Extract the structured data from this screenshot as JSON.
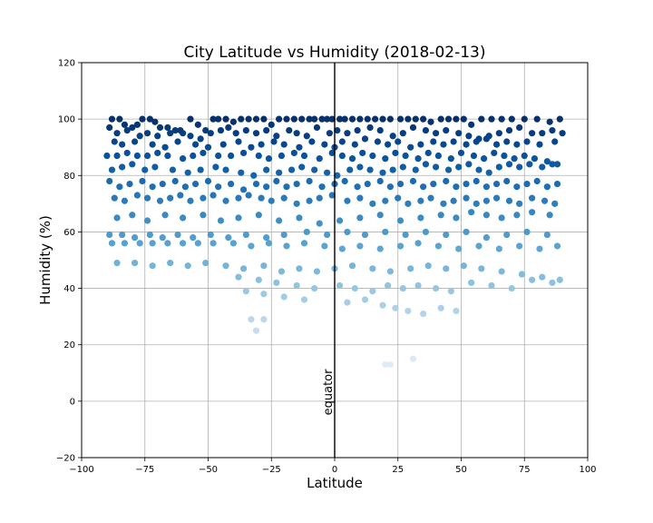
{
  "chart_data": {
    "type": "scatter",
    "title": "City Latitude vs Humidity (2018-02-13)",
    "xlabel": "Latitude",
    "ylabel": "Humidity (%)",
    "xlim": [
      -100,
      100
    ],
    "ylim": [
      -20,
      120
    ],
    "xticks": [
      -100,
      -75,
      -50,
      -25,
      0,
      25,
      50,
      75,
      100
    ],
    "yticks": [
      -20,
      0,
      20,
      40,
      60,
      80,
      100,
      120
    ],
    "grid": true,
    "colormap": "Blues",
    "reference_line": {
      "x": 0,
      "label": "equator",
      "color": "#000000"
    },
    "points": [
      [
        -88,
        100
      ],
      [
        -85,
        100
      ],
      [
        -83,
        98
      ],
      [
        -80,
        97
      ],
      [
        -78,
        98
      ],
      [
        -76,
        100
      ],
      [
        -73,
        100
      ],
      [
        -71,
        99
      ],
      [
        -69,
        97
      ],
      [
        -66,
        97
      ],
      [
        -63,
        96
      ],
      [
        -60,
        95
      ],
      [
        -57,
        100
      ],
      [
        -54,
        98
      ],
      [
        -51,
        96
      ],
      [
        -48,
        100
      ],
      [
        -46,
        100
      ],
      [
        -43,
        100
      ],
      [
        -40,
        99
      ],
      [
        -37,
        100
      ],
      [
        -34,
        100
      ],
      [
        -31,
        100
      ],
      [
        -28,
        100
      ],
      [
        -25,
        98
      ],
      [
        -22,
        100
      ],
      [
        -19,
        100
      ],
      [
        -16,
        100
      ],
      [
        -13,
        100
      ],
      [
        -10,
        100
      ],
      [
        -8,
        100
      ],
      [
        -5,
        100
      ],
      [
        -3,
        100
      ],
      [
        -1,
        100
      ],
      [
        2,
        100
      ],
      [
        4,
        100
      ],
      [
        7,
        100
      ],
      [
        10,
        100
      ],
      [
        13,
        100
      ],
      [
        16,
        100
      ],
      [
        19,
        100
      ],
      [
        22,
        100
      ],
      [
        26,
        100
      ],
      [
        29,
        100
      ],
      [
        32,
        100
      ],
      [
        35,
        100
      ],
      [
        38,
        99
      ],
      [
        42,
        100
      ],
      [
        45,
        100
      ],
      [
        48,
        100
      ],
      [
        51,
        100
      ],
      [
        54,
        98
      ],
      [
        58,
        100
      ],
      [
        62,
        100
      ],
      [
        66,
        100
      ],
      [
        70,
        100
      ],
      [
        75,
        100
      ],
      [
        80,
        100
      ],
      [
        85,
        99
      ],
      [
        89,
        100
      ],
      [
        -89,
        97
      ],
      [
        -86,
        95
      ],
      [
        -82,
        96
      ],
      [
        -77,
        94
      ],
      [
        -74,
        95
      ],
      [
        -70,
        94
      ],
      [
        -65,
        95
      ],
      [
        -61,
        96
      ],
      [
        -57,
        94
      ],
      [
        -53,
        93
      ],
      [
        -49,
        95
      ],
      [
        -45,
        96
      ],
      [
        -42,
        97
      ],
      [
        -39,
        95
      ],
      [
        -35,
        96
      ],
      [
        -31,
        95
      ],
      [
        -27,
        96
      ],
      [
        -23,
        94
      ],
      [
        -18,
        96
      ],
      [
        -15,
        95
      ],
      [
        -11,
        94
      ],
      [
        -7,
        97
      ],
      [
        -2,
        95
      ],
      [
        1,
        96
      ],
      [
        5,
        95
      ],
      [
        9,
        96
      ],
      [
        14,
        97
      ],
      [
        18,
        96
      ],
      [
        23,
        94
      ],
      [
        27,
        95
      ],
      [
        31,
        97
      ],
      [
        36,
        96
      ],
      [
        40,
        95
      ],
      [
        44,
        96
      ],
      [
        49,
        95
      ],
      [
        53,
        94
      ],
      [
        57,
        93
      ],
      [
        61,
        94
      ],
      [
        65,
        95
      ],
      [
        69,
        96
      ],
      [
        73,
        97
      ],
      [
        78,
        95
      ],
      [
        82,
        95
      ],
      [
        86,
        96
      ],
      [
        90,
        95
      ],
      [
        -87,
        92
      ],
      [
        -84,
        91
      ],
      [
        -79,
        92
      ],
      [
        -72,
        91
      ],
      [
        -67,
        90
      ],
      [
        -62,
        92
      ],
      [
        -55,
        91
      ],
      [
        -50,
        90
      ],
      [
        -44,
        91
      ],
      [
        -38,
        92
      ],
      [
        -33,
        90
      ],
      [
        -29,
        91
      ],
      [
        -24,
        92
      ],
      [
        -20,
        91
      ],
      [
        -14,
        90
      ],
      [
        -9,
        92
      ],
      [
        -4,
        91
      ],
      [
        0,
        90
      ],
      [
        3,
        92
      ],
      [
        8,
        91
      ],
      [
        12,
        93
      ],
      [
        17,
        92
      ],
      [
        21,
        91
      ],
      [
        25,
        92
      ],
      [
        30,
        90
      ],
      [
        34,
        91
      ],
      [
        39,
        92
      ],
      [
        43,
        91
      ],
      [
        47,
        92
      ],
      [
        52,
        91
      ],
      [
        56,
        92
      ],
      [
        60,
        93
      ],
      [
        64,
        91
      ],
      [
        68,
        92
      ],
      [
        72,
        91
      ],
      [
        76,
        92
      ],
      [
        81,
        91
      ],
      [
        87,
        92
      ],
      [
        -90,
        87
      ],
      [
        -86,
        87
      ],
      [
        -82,
        88
      ],
      [
        -78,
        87
      ],
      [
        -74,
        87
      ],
      [
        -70,
        88
      ],
      [
        -66,
        87
      ],
      [
        -60,
        86
      ],
      [
        -56,
        87
      ],
      [
        -52,
        88
      ],
      [
        -46,
        87
      ],
      [
        -41,
        87
      ],
      [
        -36,
        88
      ],
      [
        -30,
        87
      ],
      [
        -26,
        86
      ],
      [
        -21,
        87
      ],
      [
        -16,
        88
      ],
      [
        -12,
        87
      ],
      [
        -6,
        86
      ],
      [
        -1,
        88
      ],
      [
        3,
        87
      ],
      [
        7,
        86
      ],
      [
        11,
        88
      ],
      [
        15,
        87
      ],
      [
        20,
        86
      ],
      [
        24,
        88
      ],
      [
        28,
        87
      ],
      [
        33,
        86
      ],
      [
        37,
        88
      ],
      [
        41,
        87
      ],
      [
        46,
        86
      ],
      [
        50,
        88
      ],
      [
        55,
        87
      ],
      [
        59,
        86
      ],
      [
        63,
        88
      ],
      [
        67,
        87
      ],
      [
        71,
        86
      ],
      [
        75,
        87
      ],
      [
        79,
        86
      ],
      [
        84,
        85
      ],
      [
        88,
        84
      ],
      [
        -88,
        82
      ],
      [
        -84,
        83
      ],
      [
        -80,
        84
      ],
      [
        -75,
        82
      ],
      [
        -71,
        83
      ],
      [
        -64,
        82
      ],
      [
        -58,
        81
      ],
      [
        -53,
        82
      ],
      [
        -47,
        83
      ],
      [
        -43,
        82
      ],
      [
        -37,
        81
      ],
      [
        -32,
        80
      ],
      [
        -27,
        82
      ],
      [
        -22,
        81
      ],
      [
        -17,
        82
      ],
      [
        -13,
        83
      ],
      [
        -8,
        82
      ],
      [
        -3,
        81
      ],
      [
        1,
        80
      ],
      [
        6,
        82
      ],
      [
        10,
        83
      ],
      [
        14,
        82
      ],
      [
        19,
        81
      ],
      [
        23,
        82
      ],
      [
        27,
        83
      ],
      [
        32,
        82
      ],
      [
        36,
        84
      ],
      [
        40,
        83
      ],
      [
        45,
        82
      ],
      [
        49,
        83
      ],
      [
        53,
        84
      ],
      [
        57,
        82
      ],
      [
        61,
        81
      ],
      [
        65,
        83
      ],
      [
        69,
        84
      ],
      [
        73,
        83
      ],
      [
        77,
        84
      ],
      [
        82,
        83
      ],
      [
        86,
        84
      ],
      [
        -89,
        78
      ],
      [
        -85,
        76
      ],
      [
        -81,
        77
      ],
      [
        -76,
        78
      ],
      [
        -72,
        76
      ],
      [
        -68,
        77
      ],
      [
        -63,
        78
      ],
      [
        -59,
        76
      ],
      [
        -55,
        77
      ],
      [
        -50,
        78
      ],
      [
        -46,
        76
      ],
      [
        -41,
        77
      ],
      [
        -36,
        75
      ],
      [
        -31,
        77
      ],
      [
        -27,
        76
      ],
      [
        -23,
        78
      ],
      [
        -19,
        76
      ],
      [
        -15,
        77
      ],
      [
        -10,
        78
      ],
      [
        -5,
        76
      ],
      [
        0,
        77
      ],
      [
        4,
        78
      ],
      [
        9,
        76
      ],
      [
        13,
        77
      ],
      [
        18,
        78
      ],
      [
        22,
        76
      ],
      [
        26,
        77
      ],
      [
        31,
        78
      ],
      [
        35,
        76
      ],
      [
        39,
        77
      ],
      [
        44,
        78
      ],
      [
        48,
        76
      ],
      [
        52,
        77
      ],
      [
        56,
        78
      ],
      [
        60,
        76
      ],
      [
        64,
        77
      ],
      [
        68,
        78
      ],
      [
        72,
        76
      ],
      [
        76,
        77
      ],
      [
        80,
        78
      ],
      [
        84,
        76
      ],
      [
        88,
        77
      ],
      [
        -87,
        72
      ],
      [
        -83,
        71
      ],
      [
        -78,
        73
      ],
      [
        -74,
        72
      ],
      [
        -69,
        71
      ],
      [
        -65,
        72
      ],
      [
        -61,
        73
      ],
      [
        -57,
        71
      ],
      [
        -52,
        72
      ],
      [
        -48,
        73
      ],
      [
        -43,
        71
      ],
      [
        -38,
        72
      ],
      [
        -34,
        73
      ],
      [
        -29,
        72
      ],
      [
        -25,
        71
      ],
      [
        -20,
        72
      ],
      [
        -15,
        70
      ],
      [
        -10,
        71
      ],
      [
        -6,
        72
      ],
      [
        -1,
        73
      ],
      [
        5,
        71
      ],
      [
        10,
        72
      ],
      [
        15,
        70
      ],
      [
        20,
        71
      ],
      [
        25,
        72
      ],
      [
        29,
        70
      ],
      [
        34,
        71
      ],
      [
        38,
        72
      ],
      [
        43,
        70
      ],
      [
        47,
        71
      ],
      [
        52,
        72
      ],
      [
        56,
        70
      ],
      [
        60,
        71
      ],
      [
        64,
        72
      ],
      [
        69,
        71
      ],
      [
        73,
        70
      ],
      [
        78,
        72
      ],
      [
        83,
        71
      ],
      [
        87,
        70
      ],
      [
        -86,
        65
      ],
      [
        -80,
        66
      ],
      [
        -74,
        64
      ],
      [
        -67,
        66
      ],
      [
        -60,
        65
      ],
      [
        -52,
        66
      ],
      [
        -45,
        64
      ],
      [
        -38,
        65
      ],
      [
        -30,
        66
      ],
      [
        -22,
        64
      ],
      [
        -14,
        65
      ],
      [
        -6,
        63
      ],
      [
        2,
        64
      ],
      [
        10,
        65
      ],
      [
        18,
        66
      ],
      [
        26,
        64
      ],
      [
        34,
        65
      ],
      [
        42,
        66
      ],
      [
        48,
        65
      ],
      [
        54,
        67
      ],
      [
        60,
        66
      ],
      [
        66,
        65
      ],
      [
        72,
        66
      ],
      [
        78,
        67
      ],
      [
        85,
        66
      ],
      [
        -89,
        59
      ],
      [
        -84,
        59
      ],
      [
        -79,
        58
      ],
      [
        -73,
        59
      ],
      [
        -68,
        58
      ],
      [
        -62,
        59
      ],
      [
        -56,
        58
      ],
      [
        -49,
        59
      ],
      [
        -42,
        58
      ],
      [
        -35,
        59
      ],
      [
        -27,
        58
      ],
      [
        -20,
        59
      ],
      [
        -11,
        60
      ],
      [
        -3,
        59
      ],
      [
        5,
        60
      ],
      [
        12,
        59
      ],
      [
        20,
        60
      ],
      [
        28,
        59
      ],
      [
        36,
        60
      ],
      [
        44,
        59
      ],
      [
        52,
        60
      ],
      [
        60,
        58
      ],
      [
        68,
        59
      ],
      [
        76,
        60
      ],
      [
        84,
        59
      ],
      [
        -88,
        56
      ],
      [
        -83,
        56
      ],
      [
        -77,
        56
      ],
      [
        -72,
        56
      ],
      [
        -66,
        56
      ],
      [
        -60,
        56
      ],
      [
        -54,
        56
      ],
      [
        -48,
        56
      ],
      [
        -40,
        56
      ],
      [
        -33,
        55
      ],
      [
        -26,
        56
      ],
      [
        -19,
        55
      ],
      [
        -12,
        56
      ],
      [
        -4,
        55
      ],
      [
        3,
        54
      ],
      [
        10,
        55
      ],
      [
        18,
        54
      ],
      [
        26,
        55
      ],
      [
        33,
        56
      ],
      [
        41,
        55
      ],
      [
        49,
        54
      ],
      [
        57,
        55
      ],
      [
        65,
        54
      ],
      [
        73,
        55
      ],
      [
        81,
        54
      ],
      [
        88,
        55
      ],
      [
        -86,
        49
      ],
      [
        -79,
        49
      ],
      [
        -72,
        48
      ],
      [
        -65,
        49
      ],
      [
        -58,
        48
      ],
      [
        -51,
        49
      ],
      [
        -43,
        48
      ],
      [
        -36,
        47
      ],
      [
        -28,
        48
      ],
      [
        -21,
        46
      ],
      [
        -14,
        47
      ],
      [
        -7,
        46
      ],
      [
        0,
        47
      ],
      [
        7,
        48
      ],
      [
        15,
        47
      ],
      [
        22,
        46
      ],
      [
        30,
        47
      ],
      [
        37,
        48
      ],
      [
        44,
        47
      ],
      [
        51,
        48
      ],
      [
        58,
        47
      ],
      [
        66,
        46
      ],
      [
        74,
        45
      ],
      [
        82,
        44
      ],
      [
        89,
        43
      ],
      [
        -38,
        44
      ],
      [
        -30,
        43
      ],
      [
        -23,
        42
      ],
      [
        -15,
        41
      ],
      [
        -8,
        40
      ],
      [
        2,
        41
      ],
      [
        8,
        40
      ],
      [
        15,
        39
      ],
      [
        21,
        41
      ],
      [
        27,
        40
      ],
      [
        33,
        41
      ],
      [
        40,
        40
      ],
      [
        46,
        39
      ],
      [
        54,
        42
      ],
      [
        62,
        41
      ],
      [
        70,
        40
      ],
      [
        78,
        43
      ],
      [
        86,
        42
      ],
      [
        -35,
        39
      ],
      [
        -28,
        38
      ],
      [
        -20,
        37
      ],
      [
        -12,
        36
      ],
      [
        5,
        35
      ],
      [
        12,
        36
      ],
      [
        19,
        34
      ],
      [
        24,
        33
      ],
      [
        29,
        32
      ],
      [
        35,
        31
      ],
      [
        42,
        33
      ],
      [
        48,
        32
      ],
      [
        -33,
        29
      ],
      [
        -28,
        29
      ],
      [
        -31,
        25
      ],
      [
        20,
        13
      ],
      [
        22,
        13
      ],
      [
        31,
        15
      ]
    ]
  }
}
